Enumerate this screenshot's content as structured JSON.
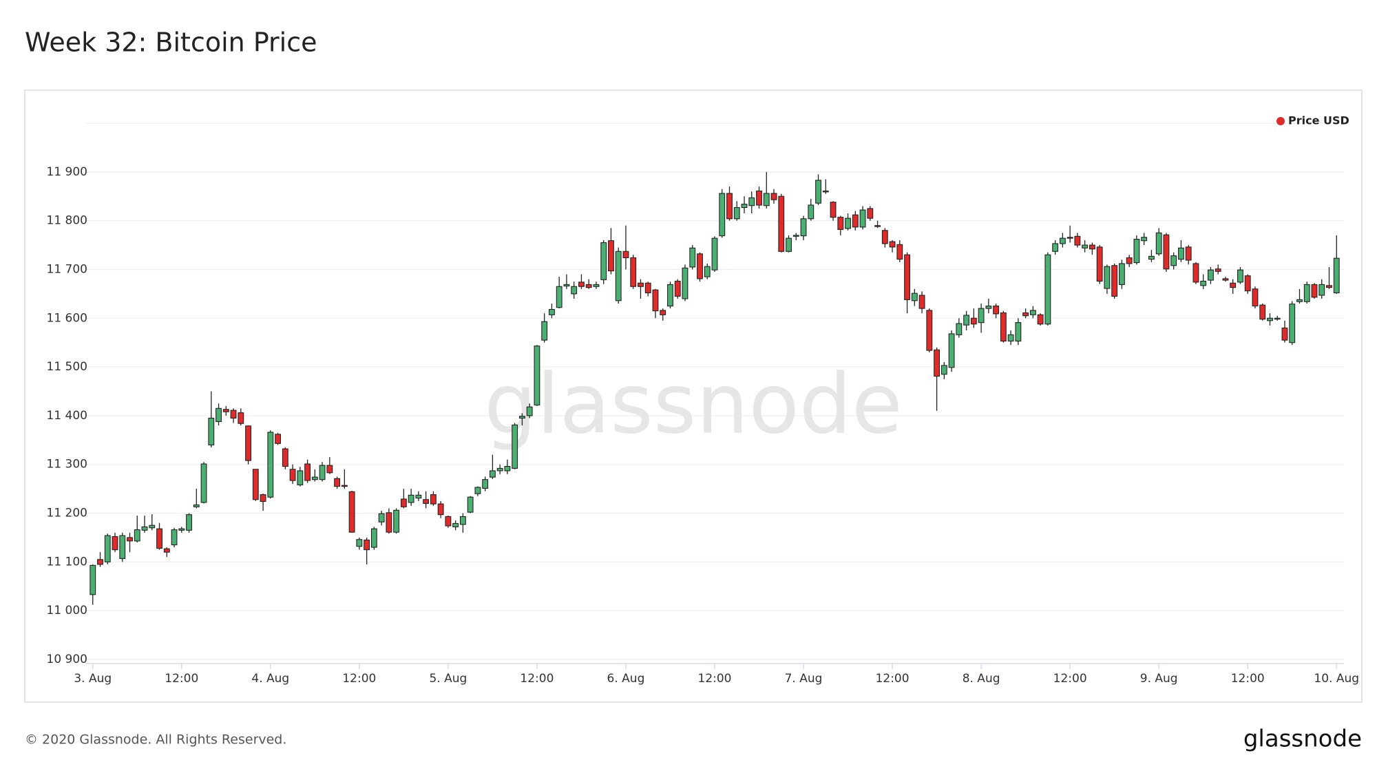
{
  "chart_data": {
    "type": "candlestick",
    "title": "Week 32: Bitcoin Price",
    "watermark": "glassnode",
    "x": [
      0,
      1,
      2,
      3,
      4,
      5,
      6,
      7,
      8,
      9,
      10,
      11,
      12,
      13,
      14,
      15,
      16,
      17,
      18,
      19,
      20,
      21,
      22,
      23,
      24,
      25,
      26,
      27,
      28,
      29,
      30,
      31,
      32,
      33,
      34,
      35,
      36,
      37,
      38,
      39,
      40,
      41,
      42,
      43,
      44,
      45,
      46,
      47,
      48,
      49,
      50,
      51,
      52,
      53,
      54,
      55,
      56,
      57,
      58,
      59,
      60,
      61,
      62,
      63,
      64,
      65,
      66,
      67,
      68,
      69,
      70,
      71,
      72,
      73,
      74,
      75,
      76,
      77,
      78,
      79,
      80,
      81,
      82,
      83,
      84,
      85,
      86,
      87,
      88,
      89,
      90,
      91,
      92,
      93,
      94,
      95,
      96,
      97,
      98,
      99,
      100,
      101,
      102,
      103,
      104,
      105,
      106,
      107,
      108,
      109,
      110,
      111,
      112,
      113,
      114,
      115,
      116,
      117,
      118,
      119,
      120,
      121,
      122,
      123,
      124,
      125,
      126,
      127,
      128,
      129,
      130,
      131,
      132,
      133,
      134,
      135,
      136,
      137,
      138,
      139,
      140,
      141,
      142,
      143,
      144,
      145,
      146,
      147,
      148,
      149,
      150,
      151,
      152,
      153,
      154,
      155,
      156,
      157,
      158,
      159,
      160,
      161,
      162,
      163,
      164,
      165,
      166,
      167,
      168
    ],
    "series": [
      {
        "name": "Price USD",
        "color": "#e02b2b",
        "up_color": "#4caf72",
        "down_color": "#e02b2b",
        "open": [
          11033,
          11105,
          11100,
          11152,
          11107,
          11150,
          11143,
          11165,
          11170,
          11168,
          11127,
          11135,
          11165,
          11165,
          11213,
          11222,
          11340,
          11388,
          11413,
          11411,
          11406,
          11379,
          11290,
          11238,
          11233,
          11362,
          11332,
          11290,
          11258,
          11301,
          11269,
          11269,
          11298,
          11271,
          11257,
          11244,
          11132,
          11145,
          11130,
          11182,
          11201,
          11161,
          11229,
          11222,
          11231,
          11228,
          11238,
          11219,
          11193,
          11172,
          11177,
          11202,
          11240,
          11251,
          11274,
          11287,
          11287,
          11292,
          11395,
          11400,
          11422,
          11555,
          11607,
          11622,
          11666,
          11650,
          11674,
          11669,
          11665,
          11679,
          11759,
          11636,
          11737,
          11724,
          11672,
          11672,
          11658,
          11616,
          11625,
          11676,
          11640,
          11705,
          11732,
          11685,
          11699,
          11769,
          11856,
          11804,
          11827,
          11831,
          11861,
          11831,
          11856,
          11850,
          11737,
          11768,
          11769,
          11804,
          11836,
          11859,
          11838,
          11807,
          11784,
          11812,
          11787,
          11825,
          11790,
          11780,
          11757,
          11751,
          11730,
          11636,
          11647,
          11616,
          11535,
          11485,
          11499,
          11566,
          11586,
          11600,
          11591,
          11620,
          11625,
          11611,
          11553,
          11553,
          11611,
          11607,
          11607,
          11588,
          11737,
          11753,
          11766,
          11768,
          11744,
          11750,
          11746,
          11661,
          11708,
          11669,
          11724,
          11714,
          11759,
          11721,
          11732,
          11771,
          11708,
          11721,
          11746,
          11712,
          11667,
          11678,
          11701,
          11681,
          11672,
          11674,
          11687,
          11660,
          11627,
          11595,
          11598,
          11580,
          11550,
          11634,
          11634,
          11669,
          11647,
          11667,
          11652
        ],
        "high": [
          11095,
          11120,
          11158,
          11160,
          11160,
          11160,
          11195,
          11195,
          11198,
          11180,
          11130,
          11170,
          11172,
          11200,
          11250,
          11305,
          11450,
          11425,
          11420,
          11415,
          11415,
          11380,
          11290,
          11240,
          11370,
          11365,
          11335,
          11300,
          11295,
          11310,
          11290,
          11305,
          11315,
          11275,
          11290,
          11246,
          11150,
          11150,
          11172,
          11205,
          11210,
          11210,
          11250,
          11250,
          11245,
          11245,
          11245,
          11225,
          11195,
          11185,
          11200,
          11235,
          11255,
          11275,
          11320,
          11300,
          11310,
          11385,
          11405,
          11425,
          11545,
          11610,
          11630,
          11685,
          11690,
          11675,
          11690,
          11680,
          11675,
          11760,
          11785,
          11745,
          11790,
          11730,
          11680,
          11675,
          11660,
          11620,
          11675,
          11680,
          11710,
          11750,
          11735,
          11712,
          11768,
          11865,
          11870,
          11840,
          11850,
          11860,
          11870,
          11900,
          11865,
          11855,
          11770,
          11775,
          11810,
          11845,
          11895,
          11885,
          11840,
          11810,
          11815,
          11820,
          11830,
          11830,
          11800,
          11785,
          11760,
          11760,
          11735,
          11660,
          11655,
          11620,
          11540,
          11510,
          11575,
          11600,
          11615,
          11620,
          11630,
          11640,
          11630,
          11615,
          11575,
          11600,
          11620,
          11625,
          11610,
          11735,
          11760,
          11775,
          11790,
          11775,
          11760,
          11755,
          11750,
          11710,
          11712,
          11720,
          11730,
          11770,
          11775,
          11740,
          11785,
          11775,
          11735,
          11760,
          11750,
          11715,
          11690,
          11705,
          11710,
          11685,
          11680,
          11705,
          11690,
          11665,
          11630,
          11610,
          11605,
          11595,
          11635,
          11660,
          11675,
          11672,
          11680,
          11705,
          11770
        ],
        "low": [
          11012,
          11090,
          11095,
          11120,
          11100,
          11120,
          11140,
          11160,
          11165,
          11125,
          11110,
          11130,
          11160,
          11160,
          11210,
          11220,
          11335,
          11380,
          11400,
          11385,
          11380,
          11300,
          11225,
          11205,
          11230,
          11340,
          11290,
          11260,
          11255,
          11262,
          11265,
          11265,
          11280,
          11250,
          11250,
          11160,
          11125,
          11095,
          11125,
          11175,
          11158,
          11158,
          11210,
          11215,
          11225,
          11210,
          11215,
          11190,
          11170,
          11165,
          11160,
          11200,
          11235,
          11245,
          11270,
          11280,
          11280,
          11290,
          11380,
          11395,
          11420,
          11550,
          11600,
          11620,
          11660,
          11640,
          11660,
          11660,
          11660,
          11670,
          11690,
          11630,
          11700,
          11660,
          11640,
          11645,
          11600,
          11595,
          11620,
          11640,
          11635,
          11700,
          11675,
          11680,
          11695,
          11765,
          11800,
          11800,
          11815,
          11815,
          11825,
          11825,
          11835,
          11735,
          11735,
          11760,
          11760,
          11800,
          11832,
          11855,
          11800,
          11770,
          11780,
          11780,
          11782,
          11800,
          11785,
          11745,
          11735,
          11715,
          11610,
          11625,
          11610,
          11530,
          11410,
          11475,
          11490,
          11560,
          11575,
          11580,
          11570,
          11610,
          11600,
          11550,
          11545,
          11545,
          11600,
          11600,
          11585,
          11585,
          11730,
          11745,
          11755,
          11745,
          11735,
          11730,
          11670,
          11650,
          11640,
          11660,
          11705,
          11710,
          11750,
          11715,
          11728,
          11695,
          11700,
          11715,
          11710,
          11670,
          11660,
          11670,
          11690,
          11675,
          11650,
          11670,
          11650,
          11620,
          11595,
          11585,
          11595,
          11550,
          11545,
          11630,
          11630,
          11640,
          11640,
          11660,
          11650
        ],
        "close": [
          11093,
          11095,
          11154,
          11125,
          11154,
          11143,
          11166,
          11172,
          11175,
          11128,
          11120,
          11166,
          11168,
          11197,
          11217,
          11301,
          11395,
          11415,
          11408,
          11395,
          11384,
          11308,
          11228,
          11224,
          11366,
          11343,
          11296,
          11267,
          11287,
          11267,
          11274,
          11298,
          11283,
          11255,
          11255,
          11161,
          11146,
          11125,
          11168,
          11199,
          11161,
          11206,
          11213,
          11237,
          11237,
          11220,
          11219,
          11197,
          11174,
          11179,
          11193,
          11233,
          11253,
          11269,
          11287,
          11292,
          11296,
          11381,
          11399,
          11418,
          11543,
          11593,
          11618,
          11665,
          11669,
          11665,
          11665,
          11663,
          11669,
          11755,
          11697,
          11737,
          11724,
          11665,
          11665,
          11652,
          11615,
          11607,
          11669,
          11645,
          11703,
          11744,
          11681,
          11706,
          11764,
          11856,
          11804,
          11827,
          11834,
          11847,
          11832,
          11856,
          11843,
          11737,
          11764,
          11770,
          11804,
          11832,
          11883,
          11861,
          11807,
          11782,
          11805,
          11787,
          11822,
          11805,
          11788,
          11753,
          11746,
          11721,
          11638,
          11651,
          11620,
          11534,
          11481,
          11503,
          11568,
          11589,
          11606,
          11588,
          11620,
          11625,
          11609,
          11553,
          11566,
          11591,
          11605,
          11616,
          11588,
          11730,
          11753,
          11764,
          11764,
          11750,
          11750,
          11742,
          11676,
          11706,
          11645,
          11712,
          11712,
          11762,
          11766,
          11727,
          11775,
          11701,
          11728,
          11744,
          11719,
          11674,
          11676,
          11699,
          11696,
          11678,
          11663,
          11699,
          11656,
          11625,
          11598,
          11600,
          11600,
          11555,
          11629,
          11638,
          11669,
          11643,
          11669,
          11663,
          11723
        ]
      }
    ],
    "xlim": [
      -1,
      169
    ],
    "xticks": [
      {
        "value": 0,
        "label": "3. Aug"
      },
      {
        "value": 12,
        "label": "12:00"
      },
      {
        "value": 24,
        "label": "4. Aug"
      },
      {
        "value": 36,
        "label": "12:00"
      },
      {
        "value": 48,
        "label": "5. Aug"
      },
      {
        "value": 60,
        "label": "12:00"
      },
      {
        "value": 72,
        "label": "6. Aug"
      },
      {
        "value": 84,
        "label": "12:00"
      },
      {
        "value": 96,
        "label": "7. Aug"
      },
      {
        "value": 108,
        "label": "12:00"
      },
      {
        "value": 120,
        "label": "8. Aug"
      },
      {
        "value": 132,
        "label": "12:00"
      },
      {
        "value": 144,
        "label": "9. Aug"
      },
      {
        "value": 156,
        "label": "12:00"
      },
      {
        "value": 168,
        "label": "10. Aug"
      }
    ],
    "ylim": [
      10900,
      12000
    ],
    "yticks": [
      {
        "value": 10900,
        "label": "10 900"
      },
      {
        "value": 11000,
        "label": "11 000"
      },
      {
        "value": 11100,
        "label": "11 100"
      },
      {
        "value": 11200,
        "label": "11 200"
      },
      {
        "value": 11300,
        "label": "11 300"
      },
      {
        "value": 11400,
        "label": "11 400"
      },
      {
        "value": 11500,
        "label": "11 500"
      },
      {
        "value": 11600,
        "label": "11 600"
      },
      {
        "value": 11700,
        "label": "11 700"
      },
      {
        "value": 11800,
        "label": "11 800"
      },
      {
        "value": 11900,
        "label": "11 900"
      }
    ],
    "grid": true,
    "legend": "top-right"
  },
  "footer": {
    "copyright": "© 2020 Glassnode. All Rights Reserved.",
    "logo": "glassnode"
  }
}
